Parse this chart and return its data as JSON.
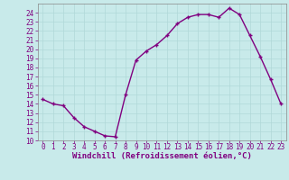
{
  "x": [
    0,
    1,
    2,
    3,
    4,
    5,
    6,
    7,
    8,
    9,
    10,
    11,
    12,
    13,
    14,
    15,
    16,
    17,
    18,
    19,
    20,
    21,
    22,
    23
  ],
  "y": [
    14.5,
    14.0,
    13.8,
    12.5,
    11.5,
    11.0,
    10.5,
    10.4,
    15.0,
    18.8,
    19.8,
    20.5,
    21.5,
    22.8,
    23.5,
    23.8,
    23.8,
    23.5,
    24.5,
    23.8,
    21.5,
    19.2,
    16.7,
    14.0
  ],
  "line_color": "#800080",
  "marker": "+",
  "background_color": "#c8eaea",
  "grid_color": "#b0d8d8",
  "xlabel": "Windchill (Refroidissement éolien,°C)",
  "xlim": [
    -0.5,
    23.5
  ],
  "ylim": [
    10,
    25
  ],
  "xticks": [
    0,
    1,
    2,
    3,
    4,
    5,
    6,
    7,
    8,
    9,
    10,
    11,
    12,
    13,
    14,
    15,
    16,
    17,
    18,
    19,
    20,
    21,
    22,
    23
  ],
  "yticks": [
    10,
    11,
    12,
    13,
    14,
    15,
    16,
    17,
    18,
    19,
    20,
    21,
    22,
    23,
    24
  ],
  "label_fontsize": 6.5,
  "tick_fontsize": 5.5,
  "line_width": 1.0,
  "marker_size": 3.5,
  "marker_edge_width": 1.0
}
